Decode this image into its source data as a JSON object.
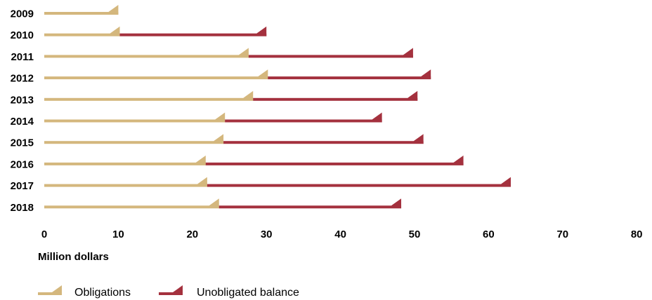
{
  "chart_data": {
    "type": "bar",
    "orientation": "horizontal",
    "stacked": true,
    "categories": [
      "2009",
      "2010",
      "2011",
      "2012",
      "2013",
      "2014",
      "2015",
      "2016",
      "2017",
      "2018"
    ],
    "series": [
      {
        "name": "Obligations",
        "values": [
          10,
          10.2,
          27.6,
          30.2,
          28.2,
          24.4,
          24.2,
          21.8,
          22,
          23.6
        ]
      },
      {
        "name": "Unobligated balance",
        "values": [
          0,
          19.8,
          22.2,
          22,
          22.2,
          21.2,
          27,
          34.8,
          41,
          24.6
        ]
      }
    ],
    "xlabel": "Million dollars",
    "ylabel": "",
    "title": "",
    "xlim": [
      0,
      80
    ],
    "xticks": [
      "0",
      "10",
      "20",
      "30",
      "40",
      "50",
      "60",
      "70",
      "80"
    ],
    "grid": false,
    "legend": "bottom-left",
    "colors": {
      "Obligations": "#d4b77d",
      "Unobligated balance": "#a4313e"
    }
  }
}
